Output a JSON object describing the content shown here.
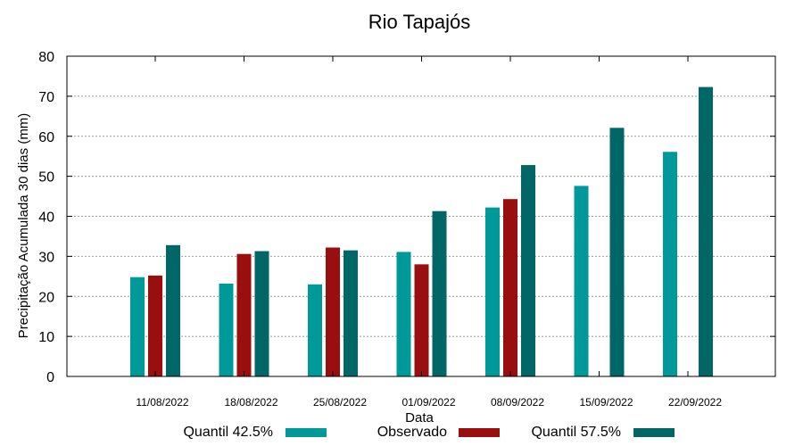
{
  "chart_data": {
    "type": "bar",
    "title": "Rio Tapajós",
    "xlabel": "Data",
    "ylabel": "Precipitação Acumulada 30 dias (mm)",
    "ylim": [
      0,
      80
    ],
    "yticks": [
      0,
      10,
      20,
      30,
      40,
      50,
      60,
      70,
      80
    ],
    "grid": true,
    "legend_position": "bottom",
    "categories": [
      "11/08/2022",
      "18/08/2022",
      "25/08/2022",
      "01/09/2022",
      "08/09/2022",
      "15/09/2022",
      "22/09/2022"
    ],
    "series": [
      {
        "name": "Quantil 42.5%",
        "color": "#009999",
        "values": [
          24.8,
          23.2,
          23.0,
          31.1,
          42.2,
          47.6,
          56.1
        ]
      },
      {
        "name": "Observado",
        "color": "#990f0f",
        "values": [
          25.2,
          30.6,
          32.2,
          28.0,
          44.3,
          null,
          null
        ]
      },
      {
        "name": "Quantil 57.5%",
        "color": "#006666",
        "values": [
          32.8,
          31.3,
          31.5,
          41.3,
          52.8,
          62.1,
          72.3
        ]
      }
    ]
  }
}
